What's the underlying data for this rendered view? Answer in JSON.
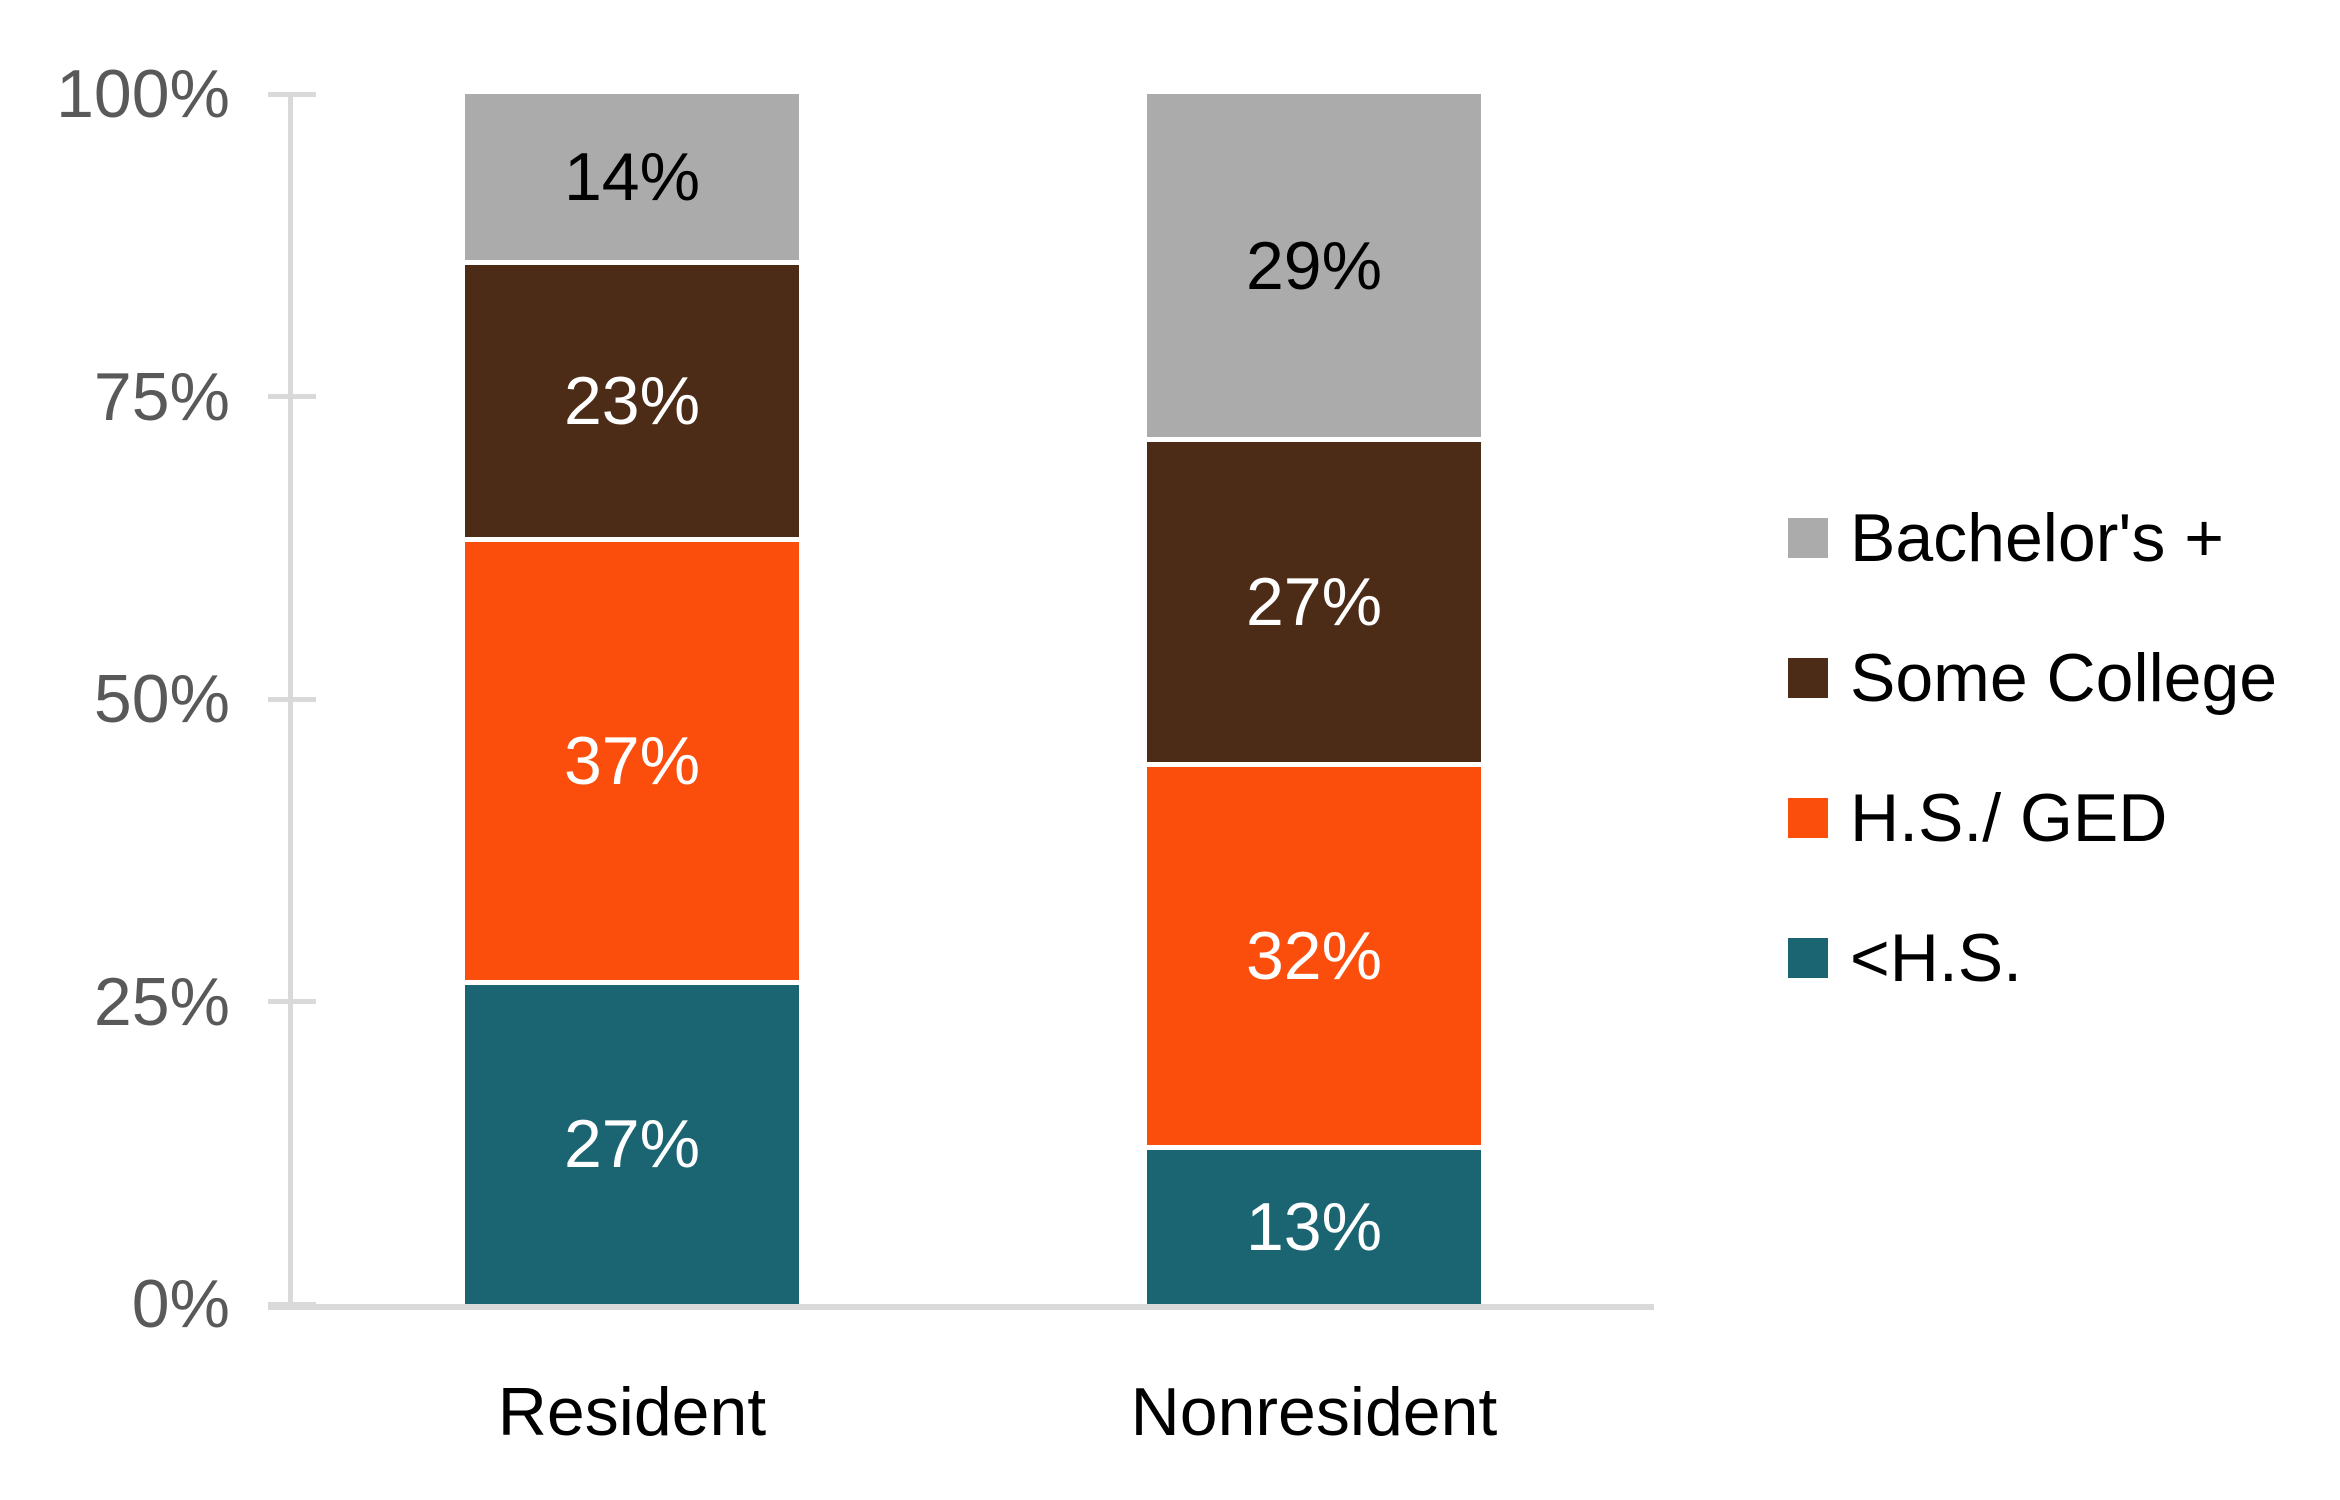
{
  "chart_data": {
    "type": "bar",
    "stacked": true,
    "percent_scale": true,
    "categories": [
      "Resident",
      "Nonresident"
    ],
    "series": [
      {
        "name": "<H.S.",
        "color": "#1B6572",
        "label_color": "#FFFFFF",
        "values": [
          27,
          13
        ],
        "labels": [
          "27%",
          "13%"
        ]
      },
      {
        "name": "H.S./ GED",
        "color": "#FB4E0D",
        "label_color": "#FFFFFF",
        "values": [
          37,
          32
        ],
        "labels": [
          "37%",
          "32%"
        ]
      },
      {
        "name": "Some College",
        "color": "#4C2B17",
        "label_color": "#FFFFFF",
        "values": [
          23,
          27
        ],
        "labels": [
          "23%",
          "27%"
        ]
      },
      {
        "name": "Bachelor's +",
        "color": "#ABABAB",
        "label_color": "#000000",
        "values": [
          14,
          29
        ],
        "labels": [
          "14%",
          "29%"
        ]
      }
    ],
    "y_axis": {
      "min": 0,
      "max": 100,
      "ticks": [
        {
          "label": "0%",
          "value": 0
        },
        {
          "label": "25%",
          "value": 25
        },
        {
          "label": "50%",
          "value": 50
        },
        {
          "label": "75%",
          "value": 75
        },
        {
          "label": "100%",
          "value": 100
        }
      ]
    },
    "legend": {
      "position": "right",
      "items": [
        {
          "label": "Bachelor's +",
          "color": "#ABABAB"
        },
        {
          "label": "Some College",
          "color": "#4C2B17"
        },
        {
          "label": "H.S./ GED",
          "color": "#FB4E0D"
        },
        {
          "label": "<H.S.",
          "color": "#1B6572"
        }
      ]
    },
    "grid": false,
    "title": "",
    "xlabel": "",
    "ylabel": ""
  },
  "colors": {
    "background": "#FFFFFF",
    "axis_line": "#D9D9D9",
    "axis_text": "#595959",
    "category_text": "#000000"
  }
}
